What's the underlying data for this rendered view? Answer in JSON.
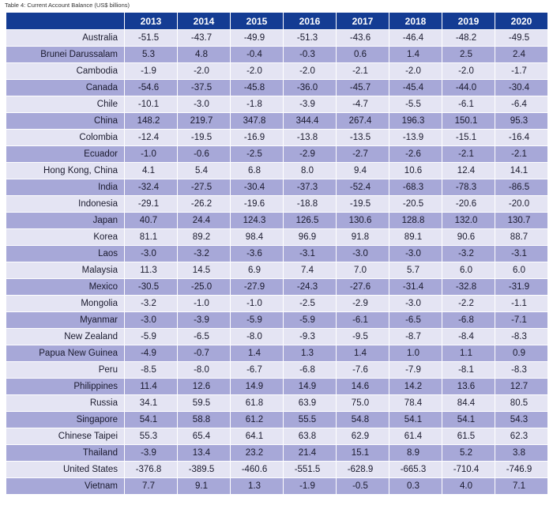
{
  "caption": "Table 4: Current Account Balance (US$ billions)",
  "columns": [
    "",
    "2013",
    "2014",
    "2015",
    "2016",
    "2017",
    "2018",
    "2019",
    "2020"
  ],
  "rows": [
    {
      "name": "Australia",
      "values": [
        "-51.5",
        "-43.7",
        "-49.9",
        "-51.3",
        "-43.6",
        "-46.4",
        "-48.2",
        "-49.5"
      ]
    },
    {
      "name": "Brunei Darussalam",
      "values": [
        "5.3",
        "4.8",
        "-0.4",
        "-0.3",
        "0.6",
        "1.4",
        "2.5",
        "2.4"
      ]
    },
    {
      "name": "Cambodia",
      "values": [
        "-1.9",
        "-2.0",
        "-2.0",
        "-2.0",
        "-2.1",
        "-2.0",
        "-2.0",
        "-1.7"
      ]
    },
    {
      "name": "Canada",
      "values": [
        "-54.6",
        "-37.5",
        "-45.8",
        "-36.0",
        "-45.7",
        "-45.4",
        "-44.0",
        "-30.4"
      ]
    },
    {
      "name": "Chile",
      "values": [
        "-10.1",
        "-3.0",
        "-1.8",
        "-3.9",
        "-4.7",
        "-5.5",
        "-6.1",
        "-6.4"
      ]
    },
    {
      "name": "China",
      "values": [
        "148.2",
        "219.7",
        "347.8",
        "344.4",
        "267.4",
        "196.3",
        "150.1",
        "95.3"
      ]
    },
    {
      "name": "Colombia",
      "values": [
        "-12.4",
        "-19.5",
        "-16.9",
        "-13.8",
        "-13.5",
        "-13.9",
        "-15.1",
        "-16.4"
      ]
    },
    {
      "name": "Ecuador",
      "values": [
        "-1.0",
        "-0.6",
        "-2.5",
        "-2.9",
        "-2.7",
        "-2.6",
        "-2.1",
        "-2.1"
      ]
    },
    {
      "name": "Hong Kong, China",
      "values": [
        "4.1",
        "5.4",
        "6.8",
        "8.0",
        "9.4",
        "10.6",
        "12.4",
        "14.1"
      ]
    },
    {
      "name": "India",
      "values": [
        "-32.4",
        "-27.5",
        "-30.4",
        "-37.3",
        "-52.4",
        "-68.3",
        "-78.3",
        "-86.5"
      ]
    },
    {
      "name": "Indonesia",
      "values": [
        "-29.1",
        "-26.2",
        "-19.6",
        "-18.8",
        "-19.5",
        "-20.5",
        "-20.6",
        "-20.0"
      ]
    },
    {
      "name": "Japan",
      "values": [
        "40.7",
        "24.4",
        "124.3",
        "126.5",
        "130.6",
        "128.8",
        "132.0",
        "130.7"
      ]
    },
    {
      "name": "Korea",
      "values": [
        "81.1",
        "89.2",
        "98.4",
        "96.9",
        "91.8",
        "89.1",
        "90.6",
        "88.7"
      ]
    },
    {
      "name": "Laos",
      "values": [
        "-3.0",
        "-3.2",
        "-3.6",
        "-3.1",
        "-3.0",
        "-3.0",
        "-3.2",
        "-3.1"
      ]
    },
    {
      "name": "Malaysia",
      "values": [
        "11.3",
        "14.5",
        "6.9",
        "7.4",
        "7.0",
        "5.7",
        "6.0",
        "6.0"
      ]
    },
    {
      "name": "Mexico",
      "values": [
        "-30.5",
        "-25.0",
        "-27.9",
        "-24.3",
        "-27.6",
        "-31.4",
        "-32.8",
        "-31.9"
      ]
    },
    {
      "name": "Mongolia",
      "values": [
        "-3.2",
        "-1.0",
        "-1.0",
        "-2.5",
        "-2.9",
        "-3.0",
        "-2.2",
        "-1.1"
      ]
    },
    {
      "name": "Myanmar",
      "values": [
        "-3.0",
        "-3.9",
        "-5.9",
        "-5.9",
        "-6.1",
        "-6.5",
        "-6.8",
        "-7.1"
      ]
    },
    {
      "name": "New Zealand",
      "values": [
        "-5.9",
        "-6.5",
        "-8.0",
        "-9.3",
        "-9.5",
        "-8.7",
        "-8.4",
        "-8.3"
      ]
    },
    {
      "name": "Papua New Guinea",
      "values": [
        "-4.9",
        "-0.7",
        "1.4",
        "1.3",
        "1.4",
        "1.0",
        "1.1",
        "0.9"
      ]
    },
    {
      "name": "Peru",
      "values": [
        "-8.5",
        "-8.0",
        "-6.7",
        "-6.8",
        "-7.6",
        "-7.9",
        "-8.1",
        "-8.3"
      ]
    },
    {
      "name": "Philippines",
      "values": [
        "11.4",
        "12.6",
        "14.9",
        "14.9",
        "14.6",
        "14.2",
        "13.6",
        "12.7"
      ]
    },
    {
      "name": "Russia",
      "values": [
        "34.1",
        "59.5",
        "61.8",
        "63.9",
        "75.0",
        "78.4",
        "84.4",
        "80.5"
      ]
    },
    {
      "name": "Singapore",
      "values": [
        "54.1",
        "58.8",
        "61.2",
        "55.5",
        "54.8",
        "54.1",
        "54.1",
        "54.3"
      ]
    },
    {
      "name": "Chinese Taipei",
      "values": [
        "55.3",
        "65.4",
        "64.1",
        "63.8",
        "62.9",
        "61.4",
        "61.5",
        "62.3"
      ]
    },
    {
      "name": "Thailand",
      "values": [
        "-3.9",
        "13.4",
        "23.2",
        "21.4",
        "15.1",
        "8.9",
        "5.2",
        "3.8"
      ]
    },
    {
      "name": "United States",
      "values": [
        "-376.8",
        "-389.5",
        "-460.6",
        "-551.5",
        "-628.9",
        "-665.3",
        "-710.4",
        "-746.9"
      ]
    },
    {
      "name": "Vietnam",
      "values": [
        "7.7",
        "9.1",
        "1.3",
        "-1.9",
        "-0.5",
        "0.3",
        "4.0",
        "7.1"
      ]
    }
  ],
  "colors": {
    "header_bg": "#143c93",
    "header_text": "#ffffff",
    "row_light": "#e4e4f3",
    "row_dark": "#a7a8d8",
    "body_text": "#1a1a2e"
  }
}
